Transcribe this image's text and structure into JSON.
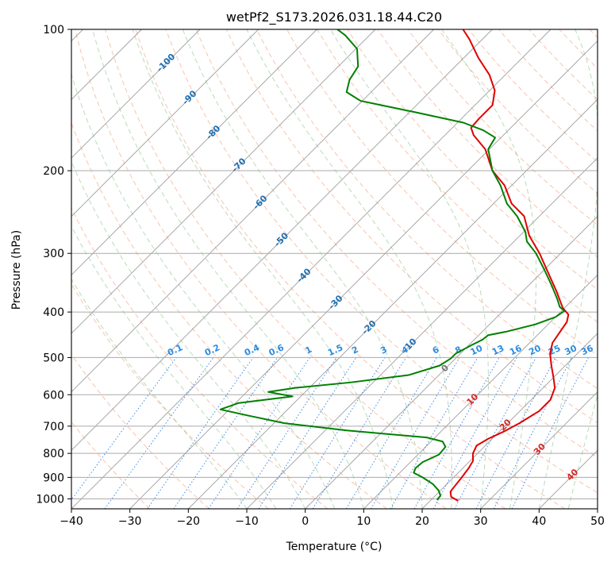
{
  "chart_data": {
    "type": "line",
    "title": "wetPf2_S173.2026.031.18.44.C20",
    "xlabel": "Temperature (°C)",
    "ylabel": "Pressure (hPa)",
    "xlim": [
      -40,
      50
    ],
    "ylim_pressure": [
      1050,
      100
    ],
    "log_pressure_axis": true,
    "grid": true,
    "x_ticks": [
      -40,
      -30,
      -20,
      -10,
      0,
      10,
      20,
      30,
      40,
      50
    ],
    "y_ticks": [
      100,
      200,
      300,
      400,
      500,
      600,
      700,
      800,
      900,
      1000
    ],
    "isotherm_labels": [
      {
        "label": "-100",
        "value": -100,
        "p": 118
      },
      {
        "label": "-90",
        "value": -90,
        "p": 140
      },
      {
        "label": "-80",
        "value": -80,
        "p": 166
      },
      {
        "label": "-70",
        "value": -70,
        "p": 195
      },
      {
        "label": "-60",
        "value": -60,
        "p": 234
      },
      {
        "label": "-50",
        "value": -50,
        "p": 281
      },
      {
        "label": "-40",
        "value": -40,
        "p": 335
      },
      {
        "label": "-30",
        "value": -30,
        "p": 382
      },
      {
        "label": "-20",
        "value": -20,
        "p": 432
      },
      {
        "label": "-10",
        "value": -10,
        "p": 472
      },
      {
        "label": "0",
        "value": 0,
        "p": 528
      },
      {
        "label": "10",
        "value": 10,
        "p": 615
      },
      {
        "label": "20",
        "value": 20,
        "p": 697
      },
      {
        "label": "30",
        "value": 30,
        "p": 785
      },
      {
        "label": "40",
        "value": 40,
        "p": 890
      }
    ],
    "mixing_ratio_labels": [
      {
        "label": "0.1",
        "value": 0.1
      },
      {
        "label": "0.2",
        "value": 0.2
      },
      {
        "label": "0.4",
        "value": 0.4
      },
      {
        "label": "0.6",
        "value": 0.6
      },
      {
        "label": "1",
        "value": 1
      },
      {
        "label": "1.5",
        "value": 1.5
      },
      {
        "label": "2",
        "value": 2
      },
      {
        "label": "3",
        "value": 3
      },
      {
        "label": "4",
        "value": 4
      },
      {
        "label": "6",
        "value": 6
      },
      {
        "label": "8",
        "value": 8
      },
      {
        "label": "10",
        "value": 10
      },
      {
        "label": "13",
        "value": 13
      },
      {
        "label": "16",
        "value": 16
      },
      {
        "label": "20",
        "value": 20
      },
      {
        "label": "25",
        "value": 25
      },
      {
        "label": "30",
        "value": 30
      },
      {
        "label": "36",
        "value": 36
      }
    ],
    "series": [
      {
        "color": "#e00000",
        "points": [
          {
            "p": 1010,
            "t": 24.8
          },
          {
            "p": 990,
            "t": 22.9
          },
          {
            "p": 965,
            "t": 21.9
          },
          {
            "p": 940,
            "t": 21.7
          },
          {
            "p": 900,
            "t": 21.4
          },
          {
            "p": 860,
            "t": 21.0
          },
          {
            "p": 830,
            "t": 20.5
          },
          {
            "p": 800,
            "t": 19.2
          },
          {
            "p": 770,
            "t": 18.5
          },
          {
            "p": 745,
            "t": 19.3
          },
          {
            "p": 720,
            "t": 20.7
          },
          {
            "p": 690,
            "t": 22.0
          },
          {
            "p": 650,
            "t": 23.3
          },
          {
            "p": 615,
            "t": 23.3
          },
          {
            "p": 580,
            "t": 22.0
          },
          {
            "p": 550,
            "t": 19.9
          },
          {
            "p": 520,
            "t": 17.6
          },
          {
            "p": 490,
            "t": 15.3
          },
          {
            "p": 465,
            "t": 13.9
          },
          {
            "p": 440,
            "t": 13.3
          },
          {
            "p": 420,
            "t": 12.8
          },
          {
            "p": 405,
            "t": 11.8
          },
          {
            "p": 392,
            "t": 9.7
          },
          {
            "p": 360,
            "t": 5.6
          },
          {
            "p": 330,
            "t": 1.2
          },
          {
            "p": 300,
            "t": -3.6
          },
          {
            "p": 275,
            "t": -8.4
          },
          {
            "p": 250,
            "t": -12.6
          },
          {
            "p": 235,
            "t": -16.9
          },
          {
            "p": 215,
            "t": -21.2
          },
          {
            "p": 200,
            "t": -25.8
          },
          {
            "p": 180,
            "t": -30.7
          },
          {
            "p": 168,
            "t": -35.1
          },
          {
            "p": 162,
            "t": -36.8
          },
          {
            "p": 155,
            "t": -37.0
          },
          {
            "p": 145,
            "t": -37.0
          },
          {
            "p": 135,
            "t": -39.1
          },
          {
            "p": 125,
            "t": -42.7
          },
          {
            "p": 115,
            "t": -47.5
          },
          {
            "p": 105,
            "t": -52.2
          },
          {
            "p": 100,
            "t": -55.0
          }
        ]
      },
      {
        "color": "#008000",
        "points": [
          {
            "p": 1005,
            "t": 21.0
          },
          {
            "p": 985,
            "t": 20.9
          },
          {
            "p": 960,
            "t": 19.7
          },
          {
            "p": 930,
            "t": 17.6
          },
          {
            "p": 900,
            "t": 14.7
          },
          {
            "p": 880,
            "t": 12.4
          },
          {
            "p": 860,
            "t": 11.9
          },
          {
            "p": 835,
            "t": 12.1
          },
          {
            "p": 805,
            "t": 13.6
          },
          {
            "p": 775,
            "t": 13.4
          },
          {
            "p": 755,
            "t": 12.0
          },
          {
            "p": 740,
            "t": 8.6
          },
          {
            "p": 715,
            "t": -6.3
          },
          {
            "p": 690,
            "t": -18.2
          },
          {
            "p": 665,
            "t": -25.6
          },
          {
            "p": 645,
            "t": -31.5
          },
          {
            "p": 625,
            "t": -29.5
          },
          {
            "p": 605,
            "t": -21.4
          },
          {
            "p": 592,
            "t": -26.3
          },
          {
            "p": 580,
            "t": -22.3
          },
          {
            "p": 565,
            "t": -13.9
          },
          {
            "p": 545,
            "t": -5.2
          },
          {
            "p": 520,
            "t": -1.5
          },
          {
            "p": 502,
            "t": -0.8
          },
          {
            "p": 490,
            "t": -0.8
          },
          {
            "p": 470,
            "t": 0.5
          },
          {
            "p": 458,
            "t": 1.4
          },
          {
            "p": 448,
            "t": 1.6
          },
          {
            "p": 440,
            "t": 4.2
          },
          {
            "p": 425,
            "t": 7.8
          },
          {
            "p": 410,
            "t": 10.0
          },
          {
            "p": 398,
            "t": 10.5
          },
          {
            "p": 390,
            "t": 9.0
          },
          {
            "p": 375,
            "t": 7.2
          },
          {
            "p": 350,
            "t": 3.8
          },
          {
            "p": 325,
            "t": 0.0
          },
          {
            "p": 300,
            "t": -4.2
          },
          {
            "p": 283,
            "t": -7.8
          },
          {
            "p": 270,
            "t": -9.7
          },
          {
            "p": 250,
            "t": -13.8
          },
          {
            "p": 235,
            "t": -17.7
          },
          {
            "p": 215,
            "t": -21.9
          },
          {
            "p": 200,
            "t": -25.8
          },
          {
            "p": 180,
            "t": -30.2
          },
          {
            "p": 170,
            "t": -31.0
          },
          {
            "p": 164,
            "t": -34.3
          },
          {
            "p": 158,
            "t": -39.0
          },
          {
            "p": 150,
            "t": -49.2
          },
          {
            "p": 142,
            "t": -60.3
          },
          {
            "p": 136,
            "t": -64.2
          },
          {
            "p": 128,
            "t": -65.8
          },
          {
            "p": 120,
            "t": -66.6
          },
          {
            "p": 110,
            "t": -69.8
          },
          {
            "p": 103,
            "t": -74.1
          },
          {
            "p": 100,
            "t": -76.5
          }
        ]
      }
    ]
  }
}
